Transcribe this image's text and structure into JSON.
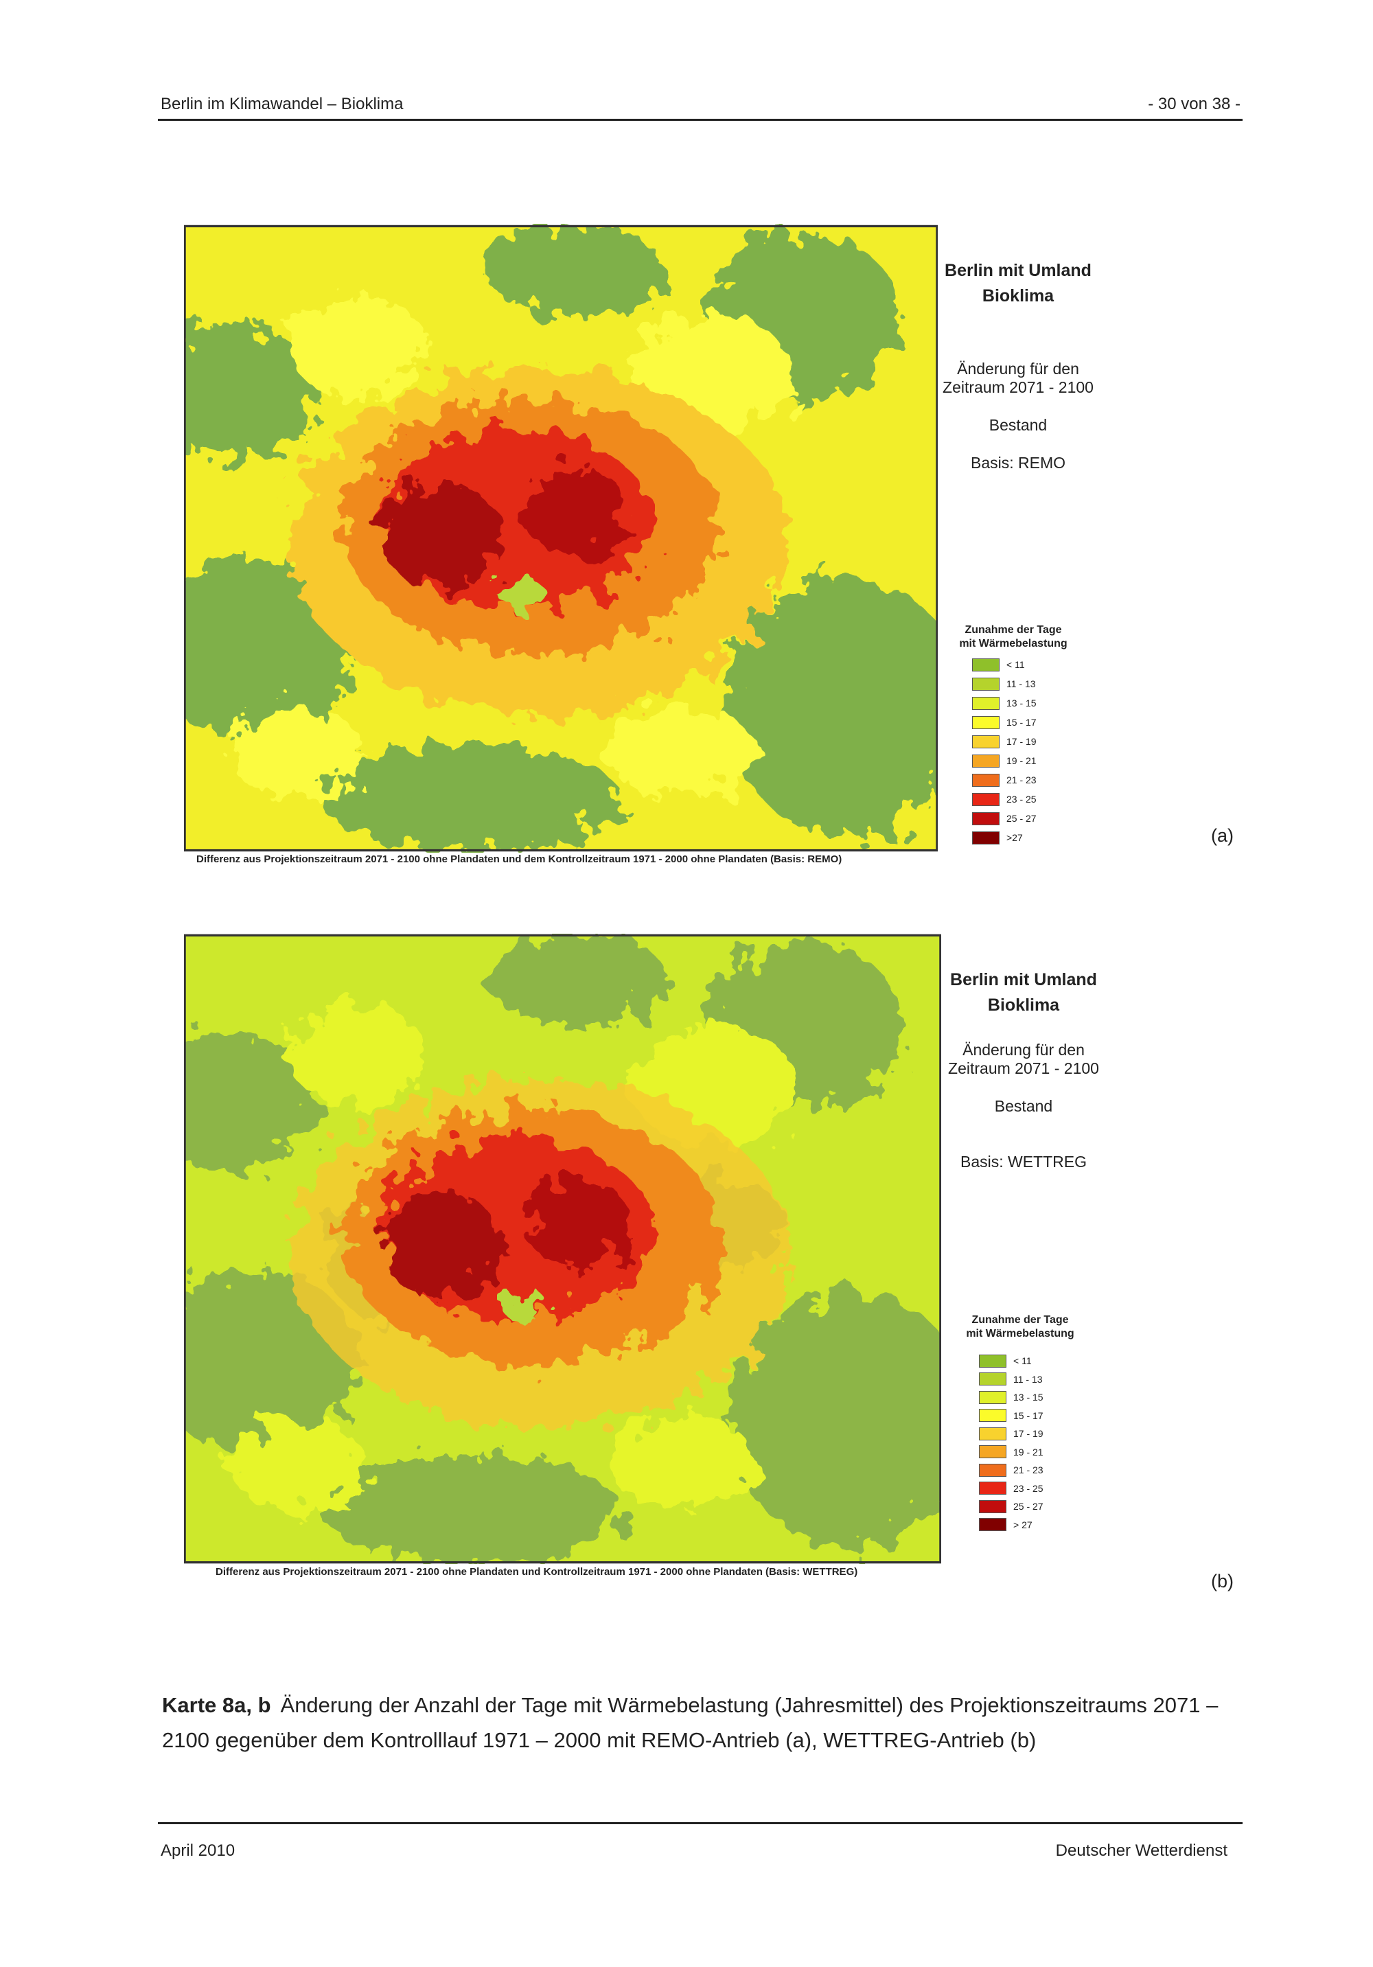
{
  "header": {
    "left": "Berlin im Klimawandel – Bioklima",
    "right": "- 30 von 38 -"
  },
  "maps": [
    {
      "title": [
        "Berlin mit Umland",
        "Bioklima"
      ],
      "info": [
        "Änderung für den",
        "Zeitraum 2071 - 2100",
        "Bestand",
        "Basis: REMO"
      ],
      "legend_title": [
        "Zunahme der Tage",
        "mit Wärmebelastung"
      ],
      "legend": [
        "< 11",
        "11 - 13",
        "13 - 15",
        "15 - 17",
        "17 - 19",
        "19 - 21",
        "21 - 23",
        "23 - 25",
        "25 - 27",
        ">27"
      ],
      "footnote": "Differenz aus Projektionszeitraum 2071 - 2100 ohne Plandaten und dem Kontrollzeitraum 1971 - 2000 ohne Plandaten (Basis: REMO)",
      "label": "(a)"
    },
    {
      "title": [
        "Berlin mit Umland",
        "Bioklima"
      ],
      "info": [
        "Änderung für den",
        "Zeitraum 2071 - 2100",
        "Bestand",
        "Basis: WETTREG"
      ],
      "legend_title": [
        "Zunahme der Tage",
        "mit Wärmebelastung"
      ],
      "legend": [
        "< 11",
        "11 - 13",
        "13 - 15",
        "15 - 17",
        "17 - 19",
        "19 - 21",
        "21 - 23",
        "23 - 25",
        "25 - 27",
        "> 27"
      ],
      "footnote": "Differenz aus Projektionszeitraum 2071 - 2100 ohne Plandaten  und Kontrollzeitraum 1971 - 2000 ohne Plandaten (Basis: WETTREG)",
      "label": "(b)"
    }
  ],
  "caption": {
    "label": "Karte 8a, b",
    "text": "Änderung der Anzahl der Tage mit Wärmebelastung (Jahresmittel) des Projektionszeitraums 2071 – 2100 gegenüber dem Kontrolllauf 1971 – 2000 mit REMO-Antrieb (a), WETTREG-Antrieb (b)"
  },
  "footer": {
    "left": "April 2010",
    "right": "Deutscher Wetterdienst"
  }
}
